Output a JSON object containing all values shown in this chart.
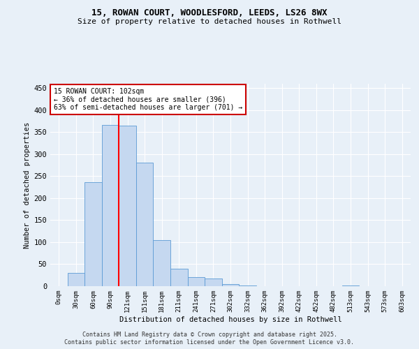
{
  "title1": "15, ROWAN COURT, WOODLESFORD, LEEDS, LS26 8WX",
  "title2": "Size of property relative to detached houses in Rothwell",
  "xlabel": "Distribution of detached houses by size in Rothwell",
  "ylabel": "Number of detached properties",
  "categories": [
    "0sqm",
    "30sqm",
    "60sqm",
    "90sqm",
    "121sqm",
    "151sqm",
    "181sqm",
    "211sqm",
    "241sqm",
    "271sqm",
    "302sqm",
    "332sqm",
    "362sqm",
    "392sqm",
    "422sqm",
    "452sqm",
    "482sqm",
    "513sqm",
    "543sqm",
    "573sqm",
    "603sqm"
  ],
  "values": [
    0,
    30,
    237,
    367,
    365,
    280,
    105,
    40,
    20,
    17,
    5,
    2,
    0,
    0,
    0,
    0,
    0,
    1,
    0,
    0,
    0
  ],
  "bar_color": "#c5d8f0",
  "bar_edge_color": "#5b9bd5",
  "bg_color": "#e8f0f8",
  "grid_color": "#ffffff",
  "red_line_x": 3.5,
  "annotation_text": "15 ROWAN COURT: 102sqm\n← 36% of detached houses are smaller (396)\n63% of semi-detached houses are larger (701) →",
  "annotation_box_color": "#ffffff",
  "annotation_box_edge_color": "#cc0000",
  "ylim": [
    0,
    460
  ],
  "yticks": [
    0,
    50,
    100,
    150,
    200,
    250,
    300,
    350,
    400,
    450
  ],
  "footer_text1": "Contains HM Land Registry data © Crown copyright and database right 2025.",
  "footer_text2": "Contains public sector information licensed under the Open Government Licence v3.0."
}
